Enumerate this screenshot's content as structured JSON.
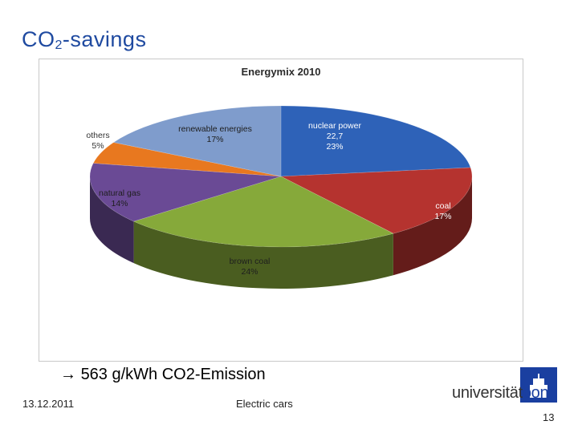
{
  "slide": {
    "title_main": "CO",
    "title_sub": "2",
    "title_rest": "-savings",
    "bullet_arrow": "→",
    "bullet_text": "563 g/kWh CO2-Emission",
    "date": "13.12.2011",
    "topic": "Electric cars",
    "page_number": "13",
    "logo_text_a": "universität",
    "logo_text_b": "bonn"
  },
  "chart_data": {
    "type": "pie",
    "title": "Energymix 2010",
    "slices": [
      {
        "label": "nuclear power",
        "extra": "22,7",
        "value": 23,
        "pct": "23%",
        "color": "#2e62b8"
      },
      {
        "label": "coal",
        "extra": "",
        "value": 17,
        "pct": "17%",
        "color": "#b5332f"
      },
      {
        "label": "brown coal",
        "extra": "",
        "value": 24,
        "pct": "24%",
        "color": "#86a93a"
      },
      {
        "label": "natural gas",
        "extra": "",
        "value": 14,
        "pct": "14%",
        "color": "#6a4a95"
      },
      {
        "label": "others",
        "extra": "",
        "value": 5,
        "pct": "5%",
        "color": "#e8781f"
      },
      {
        "label": "renewable energies",
        "extra": "",
        "value": 17,
        "pct": "17%",
        "color": "#7f9ccc"
      }
    ]
  }
}
